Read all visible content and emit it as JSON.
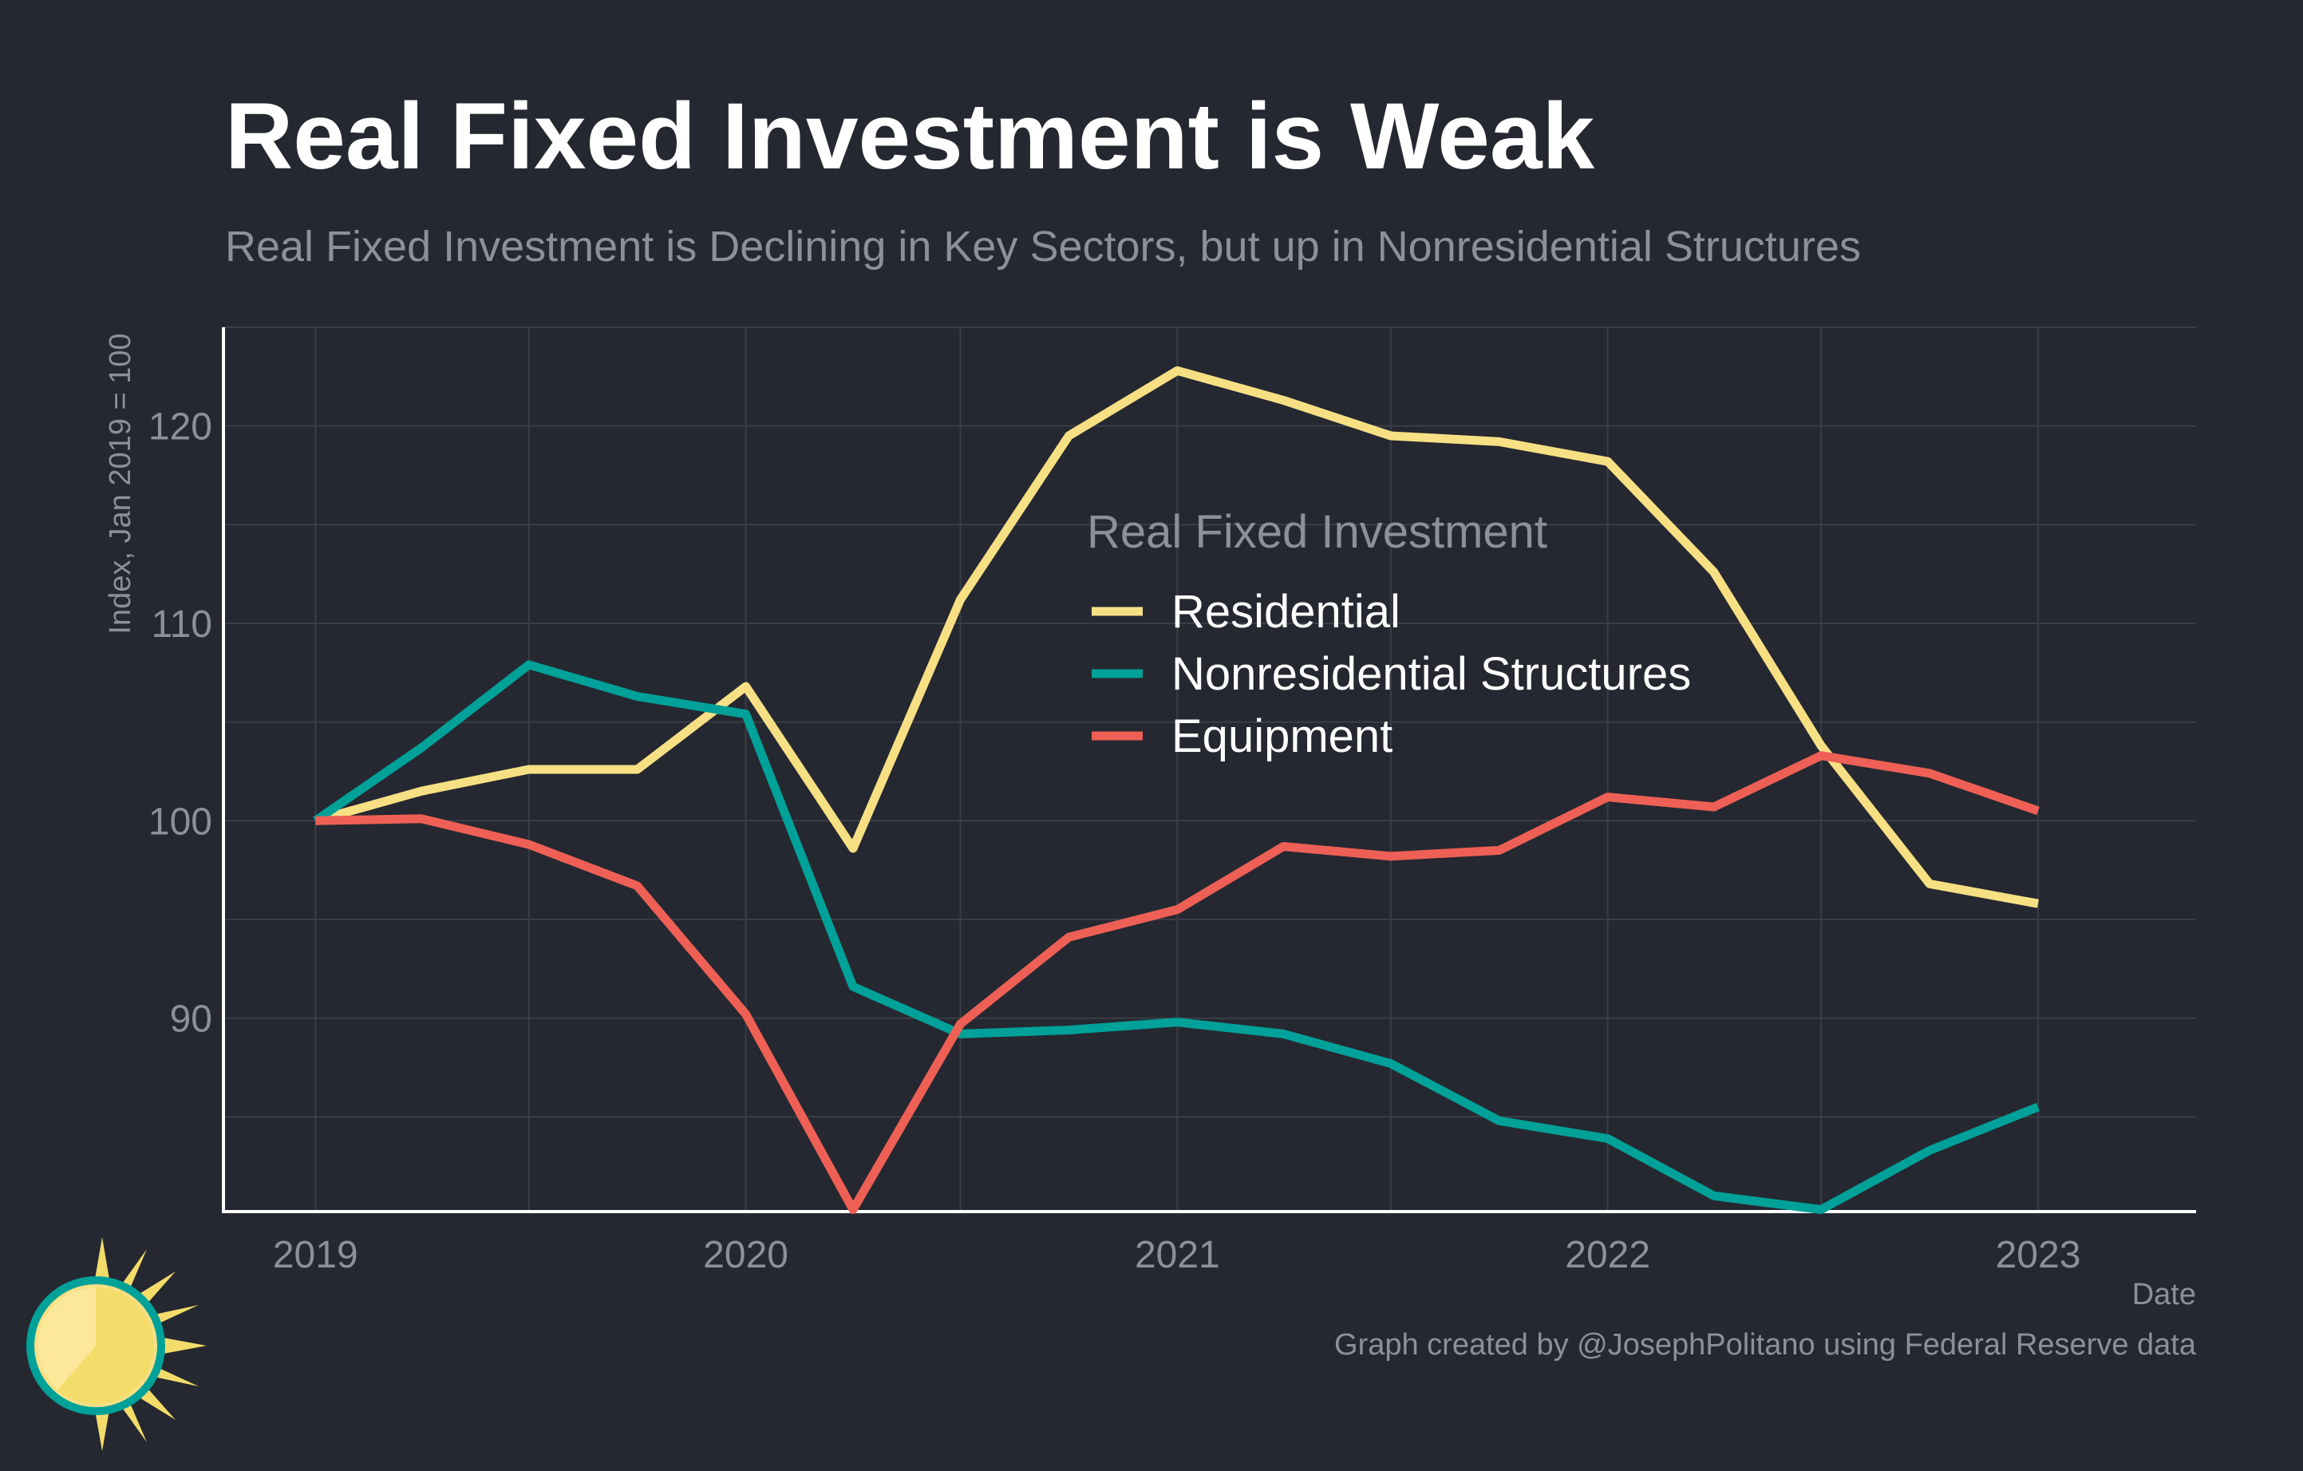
{
  "header": {
    "title": "Real Fixed Investment is Weak",
    "subtitle": "Real Fixed Investment is Declining in Key Sectors, but up in Nonresidential Structures"
  },
  "footer": {
    "credit": "Graph created by @JosephPolitano using Federal Reserve data"
  },
  "logo": {
    "icon": "sun-logo-icon"
  },
  "colors": {
    "background": "#252830",
    "grid": "#3b3e47",
    "axis": "#ffffff",
    "tick_text": "#8e9098",
    "legend_text": "#ffffff"
  },
  "chart_data": {
    "type": "line",
    "title": "",
    "xlabel": "Date",
    "ylabel": "Index, Jan 2019 = 100",
    "x_ticks": [
      "2019",
      "2020",
      "2021",
      "2022",
      "2023"
    ],
    "y_ticks": [
      90,
      100,
      110,
      120
    ],
    "xlim": [
      "2018-10-15",
      "2023-05-15"
    ],
    "ylim": [
      80.2,
      125
    ],
    "grid": true,
    "legend": {
      "title": "Real Fixed Investment",
      "position": "center"
    },
    "x": [
      "2019-01-01",
      "2019-04-01",
      "2019-07-01",
      "2019-10-01",
      "2020-01-01",
      "2020-04-01",
      "2020-07-01",
      "2020-10-01",
      "2021-01-01",
      "2021-04-01",
      "2021-07-01",
      "2021-10-01",
      "2022-01-01",
      "2022-04-01",
      "2022-07-01",
      "2022-10-01",
      "2023-01-01"
    ],
    "series": [
      {
        "name": "Residential",
        "color": "#f7e084",
        "values": [
          100,
          101.5,
          102.6,
          102.6,
          106.8,
          98.6,
          111.2,
          119.5,
          122.8,
          121.3,
          119.5,
          119.2,
          118.2,
          112.6,
          103.8,
          96.8,
          95.8
        ]
      },
      {
        "name": "Nonresidential Structures",
        "color": "#00a199",
        "values": [
          100,
          103.7,
          107.9,
          106.3,
          105.4,
          91.6,
          89.2,
          89.4,
          89.8,
          89.2,
          87.7,
          84.8,
          83.9,
          81.0,
          80.3,
          83.3,
          85.5
        ]
      },
      {
        "name": "Equipment",
        "color": "#ee6055",
        "values": [
          100,
          100.1,
          98.8,
          96.7,
          90.2,
          80.3,
          89.7,
          94.1,
          95.5,
          98.7,
          98.2,
          98.5,
          101.2,
          100.7,
          103.3,
          102.4,
          100.5
        ]
      }
    ]
  }
}
